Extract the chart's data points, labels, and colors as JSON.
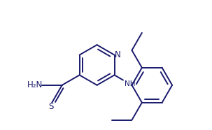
{
  "bg_color": "#ffffff",
  "line_color": "#1a1a6e",
  "line_width": 1.4,
  "font_size": 8.5,
  "figsize": [
    3.03,
    1.86
  ],
  "dpi": 100,
  "xlim": [
    -2.8,
    3.5
  ],
  "ylim": [
    -2.5,
    2.5
  ]
}
